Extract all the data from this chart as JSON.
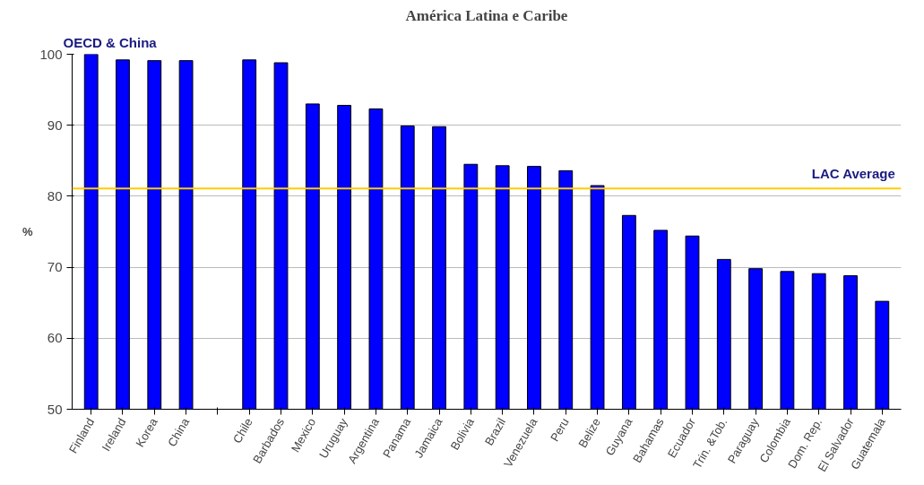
{
  "chart_data": {
    "type": "bar",
    "title": "América Latina e Caribe",
    "ylabel": "%",
    "categories": [
      "Finland",
      "Ireland",
      "Korea",
      "China",
      null,
      "Chile",
      "Barbados",
      "Mexico",
      "Uruguay",
      "Argentina",
      "Panama",
      "Jamaica",
      "Bolivia",
      "Brazil",
      "Venezuela",
      "Peru",
      "Belize",
      "Guyana",
      "Bahamas",
      "Ecuador",
      "Trin. &Tob.",
      "Paraguay",
      "Colombia",
      "Dom. Rep.",
      "El Salvador",
      "Guatemala"
    ],
    "values": [
      100,
      99.2,
      99.1,
      99.1,
      null,
      99.2,
      98.8,
      93.0,
      92.8,
      92.3,
      89.9,
      89.8,
      84.5,
      84.3,
      84.2,
      83.6,
      81.5,
      77.3,
      75.2,
      74.4,
      71.1,
      69.8,
      69.4,
      69.1,
      68.8,
      65.2
    ],
    "color": "#0000ff",
    "ylim": [
      50,
      100
    ],
    "yticks": [
      50,
      60,
      70,
      80,
      90,
      100
    ],
    "grid": "y",
    "ref_lines": [
      {
        "axis": "y",
        "value": 81.1,
        "label": "LAC Average",
        "color": "#ffcc00"
      }
    ],
    "annotations": [
      "OECD & China"
    ]
  }
}
